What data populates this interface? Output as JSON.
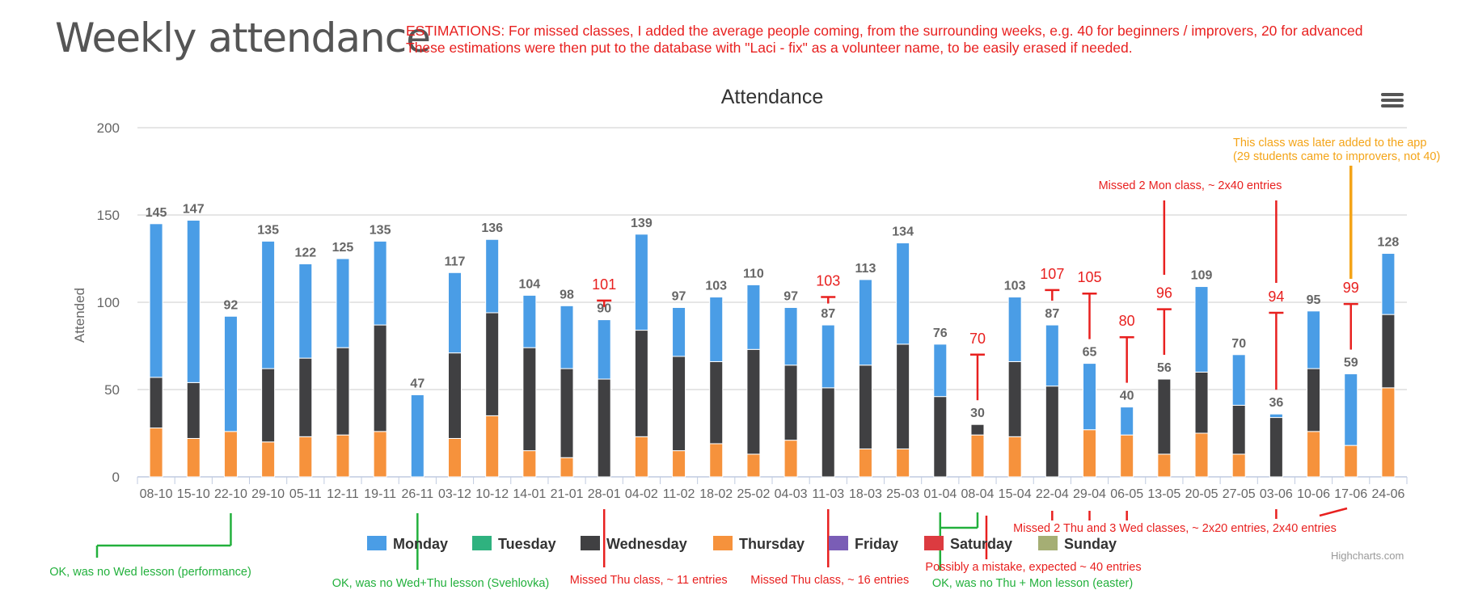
{
  "page": {
    "title": "Weekly attendance",
    "note_line1": "ESTIMATIONS: For missed classes, I added the average people coming, from the surrounding weeks, e.g. 40 for beginners / improvers, 20 for advanced",
    "note_line2": "These estimations were then put to the database with \"Laci - fix\" as a volunteer name, to be easily erased if needed.",
    "credits": "Highcharts.com",
    "menu_icon": "hamburger-menu-icon"
  },
  "chart_data": {
    "type": "bar",
    "stacked": true,
    "title": "Attendance",
    "ylabel": "Attended",
    "ylim": [
      0,
      200
    ],
    "yticks": [
      0,
      50,
      100,
      150,
      200
    ],
    "grid": true,
    "legend_position": "bottom-center",
    "categories": [
      "08-10",
      "15-10",
      "22-10",
      "29-10",
      "05-11",
      "12-11",
      "19-11",
      "26-11",
      "03-12",
      "10-12",
      "14-01",
      "21-01",
      "28-01",
      "04-02",
      "11-02",
      "18-02",
      "25-02",
      "04-03",
      "11-03",
      "18-03",
      "25-03",
      "01-04",
      "08-04",
      "15-04",
      "22-04",
      "29-04",
      "06-05",
      "13-05",
      "20-05",
      "27-05",
      "03-06",
      "10-06",
      "17-06",
      "24-06"
    ],
    "series": [
      {
        "name": "Monday",
        "color": "#4a9de6",
        "values": [
          88,
          93,
          66,
          73,
          54,
          51,
          48,
          47,
          46,
          42,
          30,
          36,
          34,
          55,
          28,
          37,
          37,
          33,
          36,
          49,
          58,
          30,
          0,
          37,
          35,
          38,
          16,
          0,
          49,
          29,
          2,
          33,
          41,
          35
        ]
      },
      {
        "name": "Tuesday",
        "color": "#2fb27f",
        "values": [
          0,
          0,
          0,
          0,
          0,
          0,
          0,
          0,
          0,
          0,
          0,
          0,
          0,
          0,
          0,
          0,
          0,
          0,
          0,
          0,
          0,
          0,
          0,
          0,
          0,
          0,
          0,
          0,
          0,
          0,
          0,
          0,
          0,
          0
        ]
      },
      {
        "name": "Wednesday",
        "color": "#404042",
        "values": [
          29,
          32,
          0,
          42,
          45,
          50,
          61,
          0,
          49,
          59,
          59,
          51,
          56,
          61,
          54,
          47,
          60,
          43,
          51,
          48,
          60,
          46,
          6,
          43,
          52,
          0,
          0,
          43,
          35,
          28,
          34,
          36,
          0,
          42
        ]
      },
      {
        "name": "Thursday",
        "color": "#f6923c",
        "values": [
          28,
          22,
          26,
          20,
          23,
          24,
          26,
          0,
          22,
          35,
          15,
          11,
          0,
          23,
          15,
          19,
          13,
          21,
          0,
          16,
          16,
          0,
          24,
          23,
          0,
          27,
          24,
          13,
          25,
          13,
          0,
          26,
          18,
          51
        ]
      },
      {
        "name": "Friday",
        "color": "#7a5db6",
        "values": [
          0,
          0,
          0,
          0,
          0,
          0,
          0,
          0,
          0,
          0,
          0,
          0,
          0,
          0,
          0,
          0,
          0,
          0,
          0,
          0,
          0,
          0,
          0,
          0,
          0,
          0,
          0,
          0,
          0,
          0,
          0,
          0,
          0,
          0
        ]
      },
      {
        "name": "Saturday",
        "color": "#dc3b40",
        "values": [
          0,
          0,
          0,
          0,
          0,
          0,
          0,
          0,
          0,
          0,
          0,
          0,
          0,
          0,
          0,
          0,
          0,
          0,
          0,
          0,
          0,
          0,
          0,
          0,
          0,
          0,
          0,
          0,
          0,
          0,
          0,
          0,
          0,
          0
        ]
      },
      {
        "name": "Sunday",
        "color": "#a5ae74",
        "values": [
          0,
          0,
          0,
          0,
          0,
          0,
          0,
          0,
          0,
          0,
          0,
          0,
          0,
          0,
          0,
          0,
          0,
          0,
          0,
          0,
          0,
          0,
          0,
          0,
          0,
          0,
          0,
          0,
          0,
          0,
          0,
          0,
          0,
          0
        ]
      }
    ],
    "totals": [
      145,
      147,
      92,
      135,
      122,
      125,
      135,
      47,
      117,
      136,
      104,
      98,
      90,
      139,
      97,
      103,
      110,
      97,
      87,
      113,
      134,
      76,
      30,
      103,
      87,
      65,
      40,
      56,
      109,
      70,
      36,
      95,
      59,
      128
    ],
    "estimated_totals": [
      {
        "category": "28-01",
        "value": 101
      },
      {
        "category": "11-03",
        "value": 103
      },
      {
        "category": "08-04",
        "value": 70
      },
      {
        "category": "22-04",
        "value": 107
      },
      {
        "category": "29-04",
        "value": 105
      },
      {
        "category": "06-05",
        "value": 80
      },
      {
        "category": "13-05",
        "value": 96
      },
      {
        "category": "03-06",
        "value": 94
      },
      {
        "category": "17-06",
        "value": 99
      }
    ],
    "annotations": {
      "ok_22_10": "OK, was no Wed lesson (performance)",
      "ok_26_11": "OK, was no Wed+Thu lesson (Svehlovka)",
      "missed_28_01": "Missed Thu class, ~ 11 entries",
      "missed_11_03": "Missed Thu class, ~ 16 entries",
      "ok_easter": "OK, was no Thu + Mon lesson (easter)",
      "mistake_08_04": "Possibly a mistake, expected ~ 40 entries",
      "missed_thu_wed": "Missed 2 Thu and 3 Wed classes, ~ 2x20 entries, 2x40 entries",
      "missed_mon": "Missed 2 Mon class, ~ 2x40 entries",
      "later_added_1": "This class was later added to the app",
      "later_added_2": "(29 students came to improvers, not 40)"
    }
  }
}
